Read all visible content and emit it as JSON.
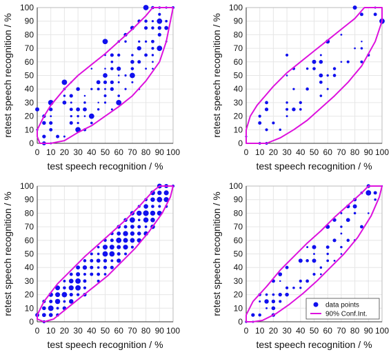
{
  "figure": {
    "colors": {
      "points": "#1010ee",
      "ellipse": "#dd11dd",
      "grid": "#e6e6e6",
      "axis": "#333333"
    }
  },
  "chart_data": [
    {
      "type": "scatter",
      "xlabel": "test speech recognition / %",
      "ylabel": "retest speech recognition / %",
      "xlim": [
        0,
        100
      ],
      "ylim": [
        0,
        100
      ],
      "xticks": [
        "0",
        "10",
        "20",
        "30",
        "40",
        "50",
        "60",
        "70",
        "80",
        "90",
        "100"
      ],
      "yticks": [
        "0",
        "10",
        "20",
        "30",
        "40",
        "50",
        "60",
        "70",
        "80",
        "90",
        "100"
      ],
      "grid": true,
      "density": "medium",
      "ellipse_upper": [
        [
          0,
          5
        ],
        [
          0,
          10
        ],
        [
          5,
          20
        ],
        [
          10,
          28
        ],
        [
          20,
          40
        ],
        [
          30,
          50
        ],
        [
          40,
          58
        ],
        [
          50,
          66
        ],
        [
          60,
          75
        ],
        [
          70,
          84
        ],
        [
          80,
          94
        ],
        [
          85,
          100
        ],
        [
          100,
          100
        ]
      ],
      "ellipse_lower": [
        [
          0,
          5
        ],
        [
          2,
          0
        ],
        [
          10,
          0
        ],
        [
          20,
          2
        ],
        [
          30,
          8
        ],
        [
          40,
          13
        ],
        [
          50,
          20
        ],
        [
          60,
          27
        ],
        [
          70,
          35
        ],
        [
          80,
          46
        ],
        [
          90,
          60
        ],
        [
          95,
          75
        ],
        [
          98,
          90
        ],
        [
          100,
          100
        ]
      ],
      "series": [
        {
          "points": [
            [
              10,
              30,
              3
            ],
            [
              20,
              45,
              3
            ],
            [
              50,
              75,
              3
            ],
            [
              80,
              100,
              3
            ],
            [
              40,
              20,
              3
            ],
            [
              30,
              10,
              3
            ],
            [
              60,
              30,
              3
            ],
            [
              70,
              50,
              3
            ],
            [
              90,
              70,
              3
            ],
            [
              0,
              25,
              2
            ],
            [
              90,
              90,
              3
            ],
            [
              70,
              85,
              2
            ]
          ]
        }
      ]
    },
    {
      "type": "scatter",
      "xlabel": "test speech recognition / %",
      "ylabel": "retest speech recognition / %",
      "xlim": [
        0,
        100
      ],
      "ylim": [
        0,
        100
      ],
      "xticks": [
        "0",
        "10",
        "20",
        "30",
        "40",
        "50",
        "60",
        "70",
        "80",
        "90",
        "100"
      ],
      "yticks": [
        "0",
        "10",
        "20",
        "30",
        "40",
        "50",
        "60",
        "70",
        "80",
        "90",
        "100"
      ],
      "grid": true,
      "density": "sparse",
      "ellipse_upper": [
        [
          0,
          0
        ],
        [
          0,
          10
        ],
        [
          3,
          20
        ],
        [
          8,
          28
        ],
        [
          20,
          42
        ],
        [
          30,
          52
        ],
        [
          40,
          60
        ],
        [
          50,
          68
        ],
        [
          60,
          76
        ],
        [
          70,
          84
        ],
        [
          80,
          92
        ],
        [
          87,
          100
        ],
        [
          100,
          100
        ]
      ],
      "ellipse_lower": [
        [
          0,
          0
        ],
        [
          5,
          0
        ],
        [
          15,
          0
        ],
        [
          25,
          4
        ],
        [
          35,
          10
        ],
        [
          45,
          17
        ],
        [
          55,
          26
        ],
        [
          65,
          35
        ],
        [
          75,
          45
        ],
        [
          85,
          57
        ],
        [
          95,
          75
        ],
        [
          100,
          90
        ],
        [
          100,
          100
        ]
      ],
      "series": [
        {
          "points": [
            [
              80,
              100,
              2
            ],
            [
              100,
              90,
              3
            ],
            [
              60,
              75,
              2
            ],
            [
              50,
              60,
              2
            ],
            [
              30,
              65,
              1
            ],
            [
              10,
              20,
              1
            ],
            [
              15,
              10,
              1
            ]
          ]
        }
      ]
    },
    {
      "type": "scatter",
      "xlabel": "test speech recognition / %",
      "ylabel": "retest speech recognition / %",
      "xlim": [
        0,
        100
      ],
      "ylim": [
        0,
        100
      ],
      "xticks": [
        "0",
        "10",
        "20",
        "30",
        "40",
        "50",
        "60",
        "70",
        "80",
        "90",
        "100"
      ],
      "yticks": [
        "0",
        "10",
        "20",
        "30",
        "40",
        "50",
        "60",
        "70",
        "80",
        "90",
        "100"
      ],
      "grid": true,
      "density": "dense",
      "ellipse_upper": [
        [
          0,
          2
        ],
        [
          0,
          5
        ],
        [
          5,
          15
        ],
        [
          15,
          28
        ],
        [
          25,
          38
        ],
        [
          35,
          48
        ],
        [
          45,
          57
        ],
        [
          55,
          66
        ],
        [
          65,
          75
        ],
        [
          75,
          85
        ],
        [
          85,
          96
        ],
        [
          90,
          100
        ],
        [
          100,
          100
        ]
      ],
      "ellipse_lower": [
        [
          0,
          2
        ],
        [
          5,
          0
        ],
        [
          12,
          2
        ],
        [
          22,
          10
        ],
        [
          32,
          18
        ],
        [
          42,
          26
        ],
        [
          52,
          34
        ],
        [
          62,
          44
        ],
        [
          72,
          54
        ],
        [
          82,
          66
        ],
        [
          92,
          80
        ],
        [
          98,
          92
        ],
        [
          100,
          100
        ]
      ],
      "series": [
        {
          "points": [
            [
              80,
              80,
              3
            ],
            [
              90,
              90,
              3
            ],
            [
              70,
              75,
              3
            ],
            [
              20,
              20,
              3
            ],
            [
              30,
              30,
              3
            ],
            [
              50,
              50,
              3
            ],
            [
              60,
              60,
              3
            ],
            [
              10,
              10,
              2
            ]
          ]
        }
      ]
    },
    {
      "type": "scatter",
      "xlabel": "test speech recognition / %",
      "ylabel": "retest speech recognition / %",
      "xlim": [
        0,
        100
      ],
      "ylim": [
        0,
        100
      ],
      "xticks": [
        "0",
        "10",
        "20",
        "30",
        "40",
        "50",
        "60",
        "70",
        "80",
        "90",
        "100"
      ],
      "yticks": [
        "0",
        "10",
        "20",
        "30",
        "40",
        "50",
        "60",
        "70",
        "80",
        "90",
        "100"
      ],
      "grid": true,
      "density": "medium-sparse",
      "legend": {
        "placement": "bottom-right",
        "entries": [
          "data points",
          "90% Conf.Int."
        ]
      },
      "ellipse_upper": [
        [
          0,
          0
        ],
        [
          0,
          5
        ],
        [
          5,
          15
        ],
        [
          15,
          26
        ],
        [
          25,
          38
        ],
        [
          35,
          48
        ],
        [
          45,
          58
        ],
        [
          55,
          67
        ],
        [
          65,
          77
        ],
        [
          75,
          86
        ],
        [
          85,
          95
        ],
        [
          90,
          100
        ],
        [
          100,
          100
        ]
      ],
      "ellipse_lower": [
        [
          0,
          0
        ],
        [
          5,
          0
        ],
        [
          12,
          1
        ],
        [
          22,
          6
        ],
        [
          32,
          13
        ],
        [
          42,
          21
        ],
        [
          52,
          30
        ],
        [
          62,
          40
        ],
        [
          72,
          50
        ],
        [
          82,
          62
        ],
        [
          92,
          78
        ],
        [
          98,
          92
        ],
        [
          100,
          100
        ]
      ],
      "series": [
        {
          "points": [
            [
              90,
              95,
              3
            ],
            [
              80,
              85,
              2
            ],
            [
              60,
              70,
              2
            ],
            [
              50,
              55,
              2
            ],
            [
              40,
              45,
              2
            ],
            [
              10,
              20,
              1
            ],
            [
              15,
              15,
              1
            ]
          ]
        }
      ]
    }
  ]
}
